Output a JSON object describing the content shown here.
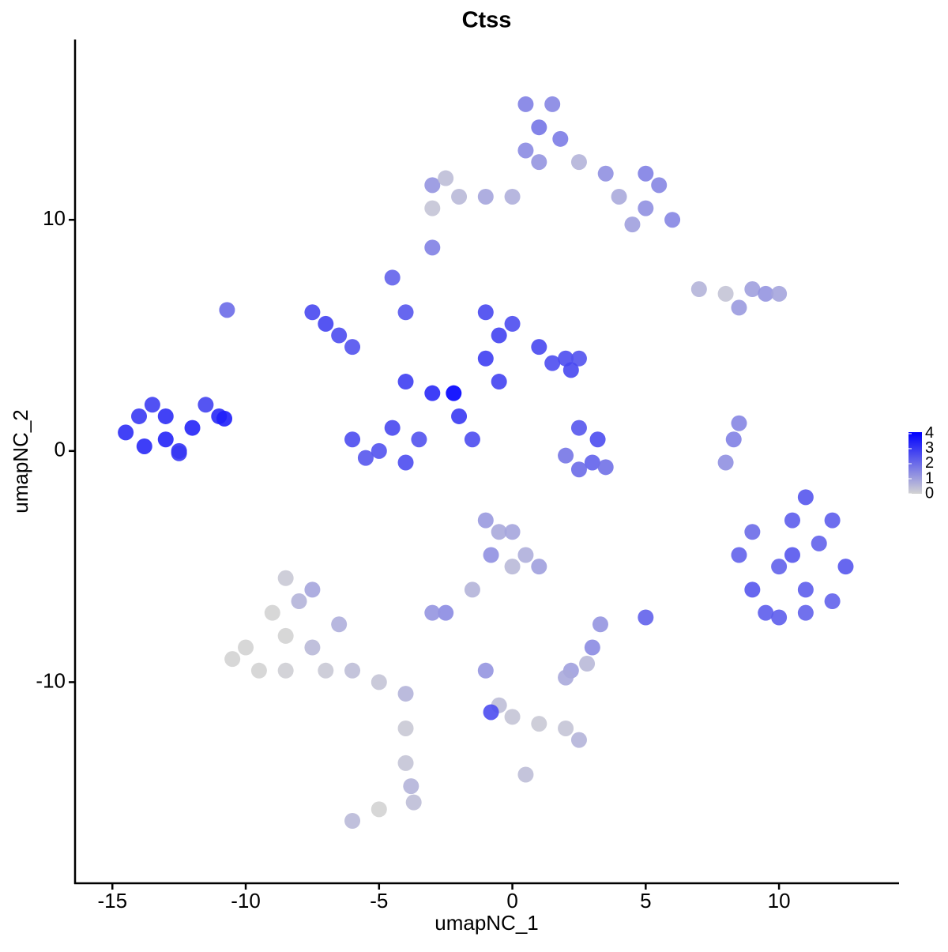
{
  "chart_data": {
    "type": "scatter",
    "title": "Ctss",
    "x_label": "umapNC_1",
    "y_label": "umapNC_2",
    "xlim": [
      -16.4,
      14.5
    ],
    "ylim": [
      -18.7,
      17.8
    ],
    "xticks": [
      -15,
      -10,
      -5,
      0,
      5,
      10
    ],
    "yticks": [
      -10,
      0,
      10
    ],
    "color_low": "#d3d3d3",
    "color_high": "#0000ff",
    "colorbar_lim": [
      0,
      4.1
    ],
    "colorbar_ticks": [
      0,
      1,
      2,
      3,
      4
    ],
    "x": [
      -14.5,
      -14,
      -13.5,
      -13,
      -13,
      -12.5,
      -12,
      -11.5,
      -11,
      -10.8,
      -13.8,
      -12.5,
      -7.5,
      -6.5,
      -7,
      -6,
      -4,
      -3,
      -2.2,
      -6,
      -5,
      -4,
      -5.5,
      -4.5,
      -3.5,
      -1,
      -0.5,
      0,
      -1,
      1,
      1.5,
      2,
      2.5,
      2.2,
      -0.5,
      -4.5,
      -4,
      -2,
      -1.5,
      2.5,
      3.2,
      3,
      2.5,
      3.5,
      2,
      0.5,
      1.5,
      1,
      1.8,
      0.5,
      1,
      2.5,
      3.5,
      5,
      5.5,
      4,
      5,
      6,
      4.5,
      -3,
      -2.5,
      -2,
      -1,
      0,
      -3,
      -3,
      -10.7,
      7,
      8,
      9,
      9.5,
      10,
      8.5,
      8.5,
      9,
      9.5,
      10,
      10.5,
      11,
      11.5,
      12,
      12.5,
      11,
      12,
      10,
      11,
      9,
      10.5,
      8.3,
      8,
      8.5,
      -8.5,
      -8,
      -9,
      -8.5,
      -10,
      -9.5,
      -8.5,
      -7.5,
      -7,
      -6,
      -5,
      -4,
      -6.5,
      -7.5,
      -10.5,
      -4,
      -4,
      -3.8,
      -3.7,
      -1,
      -0.5,
      0,
      0.5,
      1,
      -0.8,
      0,
      -1.5,
      -2.5,
      -3,
      2.2,
      2.8,
      3,
      2,
      3.3,
      5,
      -1,
      -0.5,
      0,
      1,
      2,
      2.5,
      -0.8,
      -6,
      0.5,
      -5
    ],
    "y": [
      0.8,
      1.5,
      2,
      1.5,
      0.5,
      0,
      1,
      2,
      1.5,
      1.4,
      0.2,
      -0.1,
      6,
      5,
      5.5,
      4.5,
      3,
      2.5,
      2.5,
      0.5,
      0,
      -0.5,
      -0.3,
      1,
      0.5,
      6,
      5,
      5.5,
      4,
      4.5,
      3.8,
      4,
      4,
      3.5,
      3,
      7.5,
      6,
      1.5,
      0.5,
      1,
      0.5,
      -0.5,
      -0.8,
      -0.7,
      -0.2,
      15,
      15,
      14,
      13.5,
      13,
      12.5,
      12.5,
      12,
      12,
      11.5,
      11,
      10.5,
      10,
      9.8,
      11.5,
      11.8,
      11,
      11,
      11,
      10.5,
      8.8,
      6.1,
      7,
      6.8,
      7,
      6.8,
      6.8,
      6.2,
      -4.5,
      -6,
      -7,
      -5,
      -3,
      -2,
      -4,
      -3,
      -5,
      -6,
      -6.5,
      -7.2,
      -7,
      -3.5,
      -4.5,
      0.5,
      -0.5,
      1.2,
      -5.5,
      -6.5,
      -7,
      -8,
      -8.5,
      -9.5,
      -9.5,
      -8.5,
      -9.5,
      -9.5,
      -10,
      -10.5,
      -7.5,
      -6,
      -9,
      -12,
      -13.5,
      -14.5,
      -15.2,
      -3,
      -3.5,
      -3.5,
      -4.5,
      -5,
      -4.5,
      -5,
      -6,
      -7,
      -7,
      -9.5,
      -9.2,
      -8.5,
      -9.8,
      -7.5,
      -7.2,
      -9.5,
      -11,
      -11.5,
      -11.8,
      -12,
      -12.5,
      -11.3,
      -16,
      -14,
      -15.5
    ],
    "values": [
      3.2,
      3.0,
      2.9,
      3.2,
      3.4,
      3.1,
      3.4,
      2.8,
      3.3,
      3.5,
      3.3,
      3.0,
      2.7,
      2.6,
      2.8,
      2.5,
      2.9,
      3.3,
      4.1,
      2.6,
      2.5,
      2.6,
      2.4,
      2.7,
      2.5,
      2.7,
      2.8,
      2.6,
      2.9,
      2.7,
      2.6,
      2.6,
      2.5,
      2.7,
      2.8,
      2.2,
      2.4,
      3.0,
      2.6,
      2.4,
      2.6,
      2.2,
      2.0,
      1.9,
      1.8,
      1.6,
      1.5,
      1.8,
      1.7,
      1.4,
      1.2,
      0.6,
      1.3,
      1.6,
      1.5,
      0.8,
      1.3,
      1.5,
      1.0,
      1.2,
      0.4,
      0.5,
      0.9,
      0.7,
      0.3,
      1.6,
      2.0,
      0.6,
      0.3,
      1.0,
      1.2,
      0.9,
      1.1,
      2.2,
      2.4,
      2.3,
      2.2,
      2.3,
      2.4,
      2.2,
      2.3,
      2.4,
      2.3,
      2.2,
      2.3,
      2.2,
      2.0,
      2.4,
      1.6,
      1.3,
      1.5,
      0.2,
      0.6,
      0,
      0,
      0,
      0,
      0.1,
      0.5,
      0.2,
      0.4,
      0.3,
      0.6,
      0.7,
      0.9,
      0,
      0.2,
      0.3,
      0.6,
      0.4,
      1.1,
      0.8,
      0.9,
      0.7,
      1.0,
      1.3,
      0.5,
      0.6,
      1.4,
      1.2,
      1.0,
      0.5,
      1.4,
      0.8,
      1.2,
      2.2,
      1.2,
      0.4,
      0.3,
      0.2,
      0.3,
      0.6,
      2.6,
      0.5,
      0.4,
      0
    ]
  }
}
